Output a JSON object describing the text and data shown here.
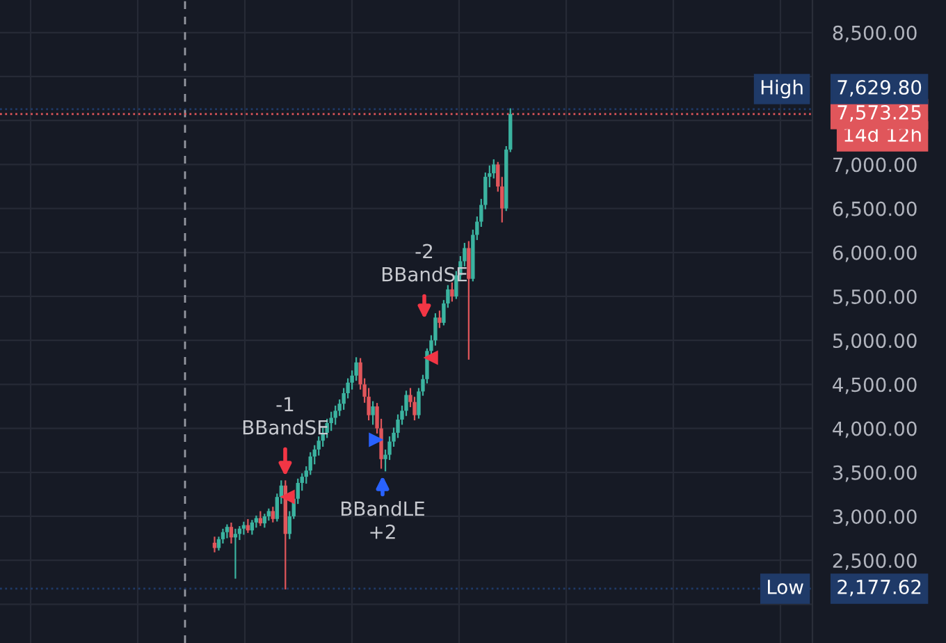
{
  "chart_data": {
    "type": "candlestick",
    "categories": [
      null,
      null,
      null,
      null,
      null,
      null,
      null,
      null,
      null,
      null,
      null,
      null,
      null,
      null,
      null,
      null,
      null,
      null,
      null,
      null,
      null,
      null,
      null,
      null,
      null,
      null,
      null,
      null,
      null,
      null,
      null,
      null,
      null,
      null,
      null,
      null,
      null,
      null,
      null,
      null,
      null,
      null,
      null,
      null,
      null,
      null,
      null,
      null,
      null,
      null,
      null,
      null,
      null,
      null,
      null,
      null,
      null,
      null,
      null,
      null,
      null,
      null,
      null,
      null,
      null,
      null,
      null,
      null,
      null,
      null,
      null,
      null,
      null,
      null,
      null,
      null,
      null,
      null,
      null,
      null,
      null,
      null,
      null,
      null,
      null,
      null,
      null,
      null,
      null,
      null,
      null,
      null,
      null,
      null,
      null,
      null,
      null,
      null,
      null,
      null,
      null,
      null,
      null,
      null,
      null,
      null,
      null,
      null,
      null,
      null,
      null,
      null,
      null,
      null,
      null,
      null,
      null,
      null,
      null,
      null,
      null,
      null,
      null,
      null,
      null,
      null,
      null,
      null,
      null,
      null,
      null,
      null,
      null,
      null,
      null,
      null,
      null,
      null,
      null,
      null,
      null,
      null,
      null,
      null,
      null,
      null,
      null,
      null,
      null,
      null,
      null,
      null,
      null,
      null,
      null,
      null,
      null,
      null,
      null,
      null,
      null,
      null,
      null,
      null,
      null,
      null,
      null,
      null,
      null,
      null,
      null,
      null,
      null,
      null,
      null,
      null,
      null,
      null,
      null,
      null,
      null,
      null,
      null,
      null,
      null,
      null,
      null,
      null,
      null,
      null,
      null,
      null,
      null,
      null,
      null
    ],
    "ohlc": [
      null,
      null,
      null,
      null,
      null,
      null,
      null,
      null,
      null,
      null,
      null,
      null,
      null,
      null,
      null,
      null,
      null,
      null,
      null,
      null,
      null,
      null,
      null,
      null,
      null,
      null,
      null,
      null,
      null,
      null,
      null,
      null,
      null,
      null,
      null,
      null,
      null,
      null,
      null,
      null,
      null,
      null,
      null,
      null,
      null,
      null,
      null,
      null,
      null,
      null,
      null,
      [
        2700,
        2760,
        2600,
        2640
      ],
      [
        2640,
        2760,
        2620,
        2740
      ],
      [
        2740,
        2850,
        2700,
        2820
      ],
      [
        2820,
        2900,
        2760,
        2880
      ],
      [
        2880,
        2920,
        2700,
        2760
      ],
      [
        2760,
        2850,
        2300,
        2800
      ],
      [
        2800,
        2880,
        2740,
        2860
      ],
      [
        2860,
        2930,
        2800,
        2900
      ],
      [
        2900,
        2960,
        2820,
        2840
      ],
      [
        2840,
        2950,
        2800,
        2930
      ],
      [
        2930,
        3000,
        2880,
        2980
      ],
      [
        2980,
        3050,
        2900,
        2920
      ],
      [
        2920,
        3020,
        2880,
        3000
      ],
      [
        3000,
        3080,
        2960,
        3060
      ],
      [
        3060,
        3100,
        2940,
        2970
      ],
      [
        2970,
        3250,
        2950,
        3220
      ],
      [
        3220,
        3400,
        3150,
        3350
      ],
      [
        3350,
        3400,
        2177.62,
        2800
      ],
      [
        2800,
        3050,
        2750,
        3000
      ],
      [
        3000,
        3250,
        2980,
        3200
      ],
      [
        3200,
        3420,
        3150,
        3380
      ],
      [
        3380,
        3480,
        3300,
        3450
      ],
      [
        3450,
        3560,
        3380,
        3520
      ],
      [
        3520,
        3720,
        3480,
        3680
      ],
      [
        3680,
        3800,
        3600,
        3760
      ],
      [
        3760,
        3900,
        3700,
        3860
      ],
      [
        3860,
        4000,
        3800,
        3950
      ],
      [
        3950,
        4100,
        3900,
        4060
      ],
      [
        4060,
        4180,
        3980,
        4120
      ],
      [
        4120,
        4250,
        4050,
        4200
      ],
      [
        4200,
        4320,
        4150,
        4280
      ],
      [
        4280,
        4450,
        4220,
        4400
      ],
      [
        4400,
        4560,
        4350,
        4520
      ],
      [
        4520,
        4650,
        4450,
        4600
      ],
      [
        4600,
        4800,
        4550,
        4750
      ],
      [
        4750,
        4790,
        4450,
        4500
      ],
      [
        4500,
        4560,
        4300,
        4360
      ],
      [
        4360,
        4450,
        4100,
        4150
      ],
      [
        4150,
        4300,
        4050,
        4250
      ],
      [
        4250,
        4280,
        3950,
        4000
      ],
      [
        4000,
        4100,
        3550,
        3650
      ],
      [
        3650,
        3750,
        3520,
        3700
      ],
      [
        3700,
        3900,
        3650,
        3850
      ],
      [
        3850,
        4000,
        3800,
        3950
      ],
      [
        3950,
        4150,
        3900,
        4100
      ],
      [
        4100,
        4250,
        4050,
        4200
      ],
      [
        4200,
        4420,
        4150,
        4380
      ],
      [
        4380,
        4450,
        4250,
        4300
      ],
      [
        4300,
        4350,
        4100,
        4150
      ],
      [
        4150,
        4450,
        4120,
        4420
      ],
      [
        4420,
        4600,
        4380,
        4560
      ],
      [
        4560,
        4900,
        4520,
        4880
      ],
      [
        4880,
        5050,
        4850,
        5000
      ],
      [
        5000,
        5300,
        4950,
        5260
      ],
      [
        5260,
        5330,
        5150,
        5200
      ],
      [
        5200,
        5450,
        5180,
        5420
      ],
      [
        5420,
        5620,
        5380,
        5580
      ],
      [
        5580,
        5650,
        5450,
        5500
      ],
      [
        5500,
        5780,
        5480,
        5740
      ],
      [
        5740,
        5950,
        5700,
        5900
      ],
      [
        5900,
        6100,
        5850,
        6050
      ],
      [
        6050,
        6120,
        4790,
        5700
      ],
      [
        5700,
        6250,
        5680,
        6200
      ],
      [
        6200,
        6400,
        6150,
        6350
      ],
      [
        6350,
        6600,
        6300,
        6540
      ],
      [
        6540,
        6900,
        6500,
        6860
      ],
      [
        6860,
        6980,
        6750,
        6900
      ],
      [
        6900,
        7050,
        6850,
        7000
      ],
      [
        7000,
        7020,
        6700,
        6750
      ],
      [
        6750,
        6850,
        6350,
        6500
      ],
      [
        6500,
        7200,
        6480,
        7170
      ],
      [
        7170,
        7629.8,
        7150,
        7573.25
      ],
      null,
      null,
      null,
      null,
      null,
      null,
      null,
      null,
      null,
      null,
      null,
      null,
      null,
      null,
      null,
      null,
      null,
      null,
      null,
      null,
      null,
      null,
      null,
      null,
      null,
      null,
      null,
      null,
      null,
      null,
      null,
      null,
      null,
      null,
      null,
      null,
      null,
      null,
      null,
      null,
      null,
      null,
      null,
      null,
      null,
      null,
      null,
      null,
      null,
      null,
      null,
      null,
      null,
      null,
      null,
      null,
      null,
      null,
      null,
      null,
      null,
      null,
      null,
      null,
      null,
      null,
      null,
      null,
      null,
      null,
      null,
      null
    ],
    "colors": [
      null,
      null,
      null,
      null,
      null,
      null,
      null,
      null,
      null,
      null,
      null,
      null,
      null,
      null,
      null,
      null,
      null,
      null,
      null,
      null,
      null,
      null,
      null,
      null,
      null,
      null,
      null,
      null,
      null,
      null,
      null,
      null,
      null,
      null,
      null,
      null,
      null,
      null,
      null,
      null,
      null,
      null,
      null,
      null,
      null,
      null,
      null,
      null,
      null,
      null,
      null,
      "#e0565b",
      "#3bb3a0",
      "#3bb3a0",
      "#3bb3a0",
      "#e0565b",
      "#3bb3a0",
      "#3bb3a0",
      "#3bb3a0",
      "#e0565b",
      "#3bb3a0",
      "#3bb3a0",
      "#e0565b",
      "#3bb3a0",
      "#3bb3a0",
      "#e0565b",
      "#3bb3a0",
      "#3bb3a0",
      "#e0565b",
      "#3bb3a0",
      "#3bb3a0",
      "#3bb3a0",
      "#3bb3a0",
      "#3bb3a0",
      "#3bb3a0",
      "#3bb3a0",
      "#3bb3a0",
      "#3bb3a0",
      "#3bb3a0",
      "#3bb3a0",
      "#3bb3a0",
      "#3bb3a0",
      "#3bb3a0",
      "#3bb3a0",
      "#3bb3a0",
      "#3bb3a0",
      "#e0565b",
      "#e0565b",
      "#e0565b",
      "#3bb3a0",
      "#e0565b",
      "#e0565b",
      "#3bb3a0",
      "#3bb3a0",
      "#3bb3a0",
      "#3bb3a0",
      "#3bb3a0",
      "#3bb3a0",
      "#e0565b",
      "#e0565b",
      "#3bb3a0",
      "#3bb3a0",
      "#3bb3a0",
      "#3bb3a0",
      "#3bb3a0",
      "#e0565b",
      "#3bb3a0",
      "#3bb3a0",
      "#e0565b",
      "#3bb3a0",
      "#3bb3a0",
      "#3bb3a0",
      "#e0565b",
      "#3bb3a0",
      "#3bb3a0",
      "#3bb3a0",
      "#3bb3a0",
      "#3bb3a0",
      "#3bb3a0",
      "#e0565b",
      "#e0565b",
      "#3bb3a0",
      "#3bb3a0",
      null,
      null,
      null,
      null,
      null,
      null,
      null,
      null,
      null,
      null,
      null,
      null,
      null,
      null,
      null,
      null,
      null,
      null,
      null,
      null,
      null,
      null,
      null,
      null,
      null,
      null,
      null,
      null,
      null,
      null,
      null,
      null,
      null,
      null,
      null,
      null,
      null,
      null,
      null,
      null,
      null,
      null,
      null,
      null,
      null,
      null,
      null,
      null,
      null,
      null,
      null,
      null,
      null,
      null,
      null,
      null,
      null,
      null,
      null,
      null,
      null,
      null,
      null,
      null,
      null,
      null,
      null,
      null,
      null,
      null,
      null,
      null
    ],
    "ylim": [
      1560,
      8870
    ],
    "yticks": [
      {
        "value": 2000,
        "label": null
      },
      {
        "value": 2500,
        "label": "2,500.00"
      },
      {
        "value": 3000,
        "label": "3,000.00"
      },
      {
        "value": 3500,
        "label": "3,500.00"
      },
      {
        "value": 4000,
        "label": "4,000.00"
      },
      {
        "value": 4500,
        "label": "4,500.00"
      },
      {
        "value": 5000,
        "label": "5,000.00"
      },
      {
        "value": 5500,
        "label": "5,500.00"
      },
      {
        "value": 6000,
        "label": "6,000.00"
      },
      {
        "value": 6500,
        "label": "6,500.00"
      },
      {
        "value": 7000,
        "label": "7,000.00"
      },
      {
        "value": 7500,
        "label": null
      },
      {
        "value": 8000,
        "label": null
      },
      {
        "value": 8500,
        "label": "8,500.00"
      }
    ],
    "grid": true,
    "ref_lines": [
      {
        "axis": "y",
        "value": 7573.25,
        "label": "14d 12h",
        "color": "#e0565b",
        "line_style": "dotted"
      },
      {
        "axis": "y",
        "value": 7629.8,
        "label": "High",
        "color": "#1f3a68",
        "line_style": "dotted"
      },
      {
        "axis": "y",
        "value": 2177.62,
        "label": "Low",
        "color": "#1f3a68",
        "line_style": "dotted"
      }
    ],
    "annotations": [
      "-1\nBBandSE",
      "BBandLE\n+2",
      "-2\nBBandSE",
      "7,573.25",
      "7,629.80",
      "2,177.62"
    ]
  }
}
